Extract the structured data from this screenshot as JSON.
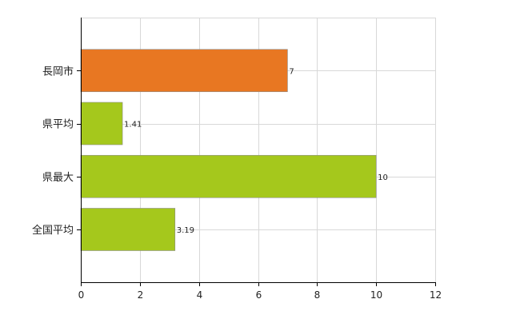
{
  "chart_data": {
    "type": "bar",
    "orientation": "horizontal",
    "title": "",
    "xlabel": "",
    "ylabel": "",
    "categories": [
      "長岡市",
      "県平均",
      "県最大",
      "全国平均"
    ],
    "values": [
      7,
      1.41,
      10,
      3.19
    ],
    "data_labels": [
      "7",
      "1.41",
      "10",
      "3.19"
    ],
    "bar_colors": [
      "#e87722",
      "#a5c81c",
      "#a5c81c",
      "#a5c81c"
    ],
    "xlim": [
      0,
      12
    ],
    "x_ticks": [
      0,
      2,
      4,
      6,
      8,
      10,
      12
    ],
    "x_tick_labels": [
      "0",
      "2",
      "4",
      "6",
      "8",
      "10",
      "12"
    ],
    "grid": true,
    "legend": "none"
  }
}
